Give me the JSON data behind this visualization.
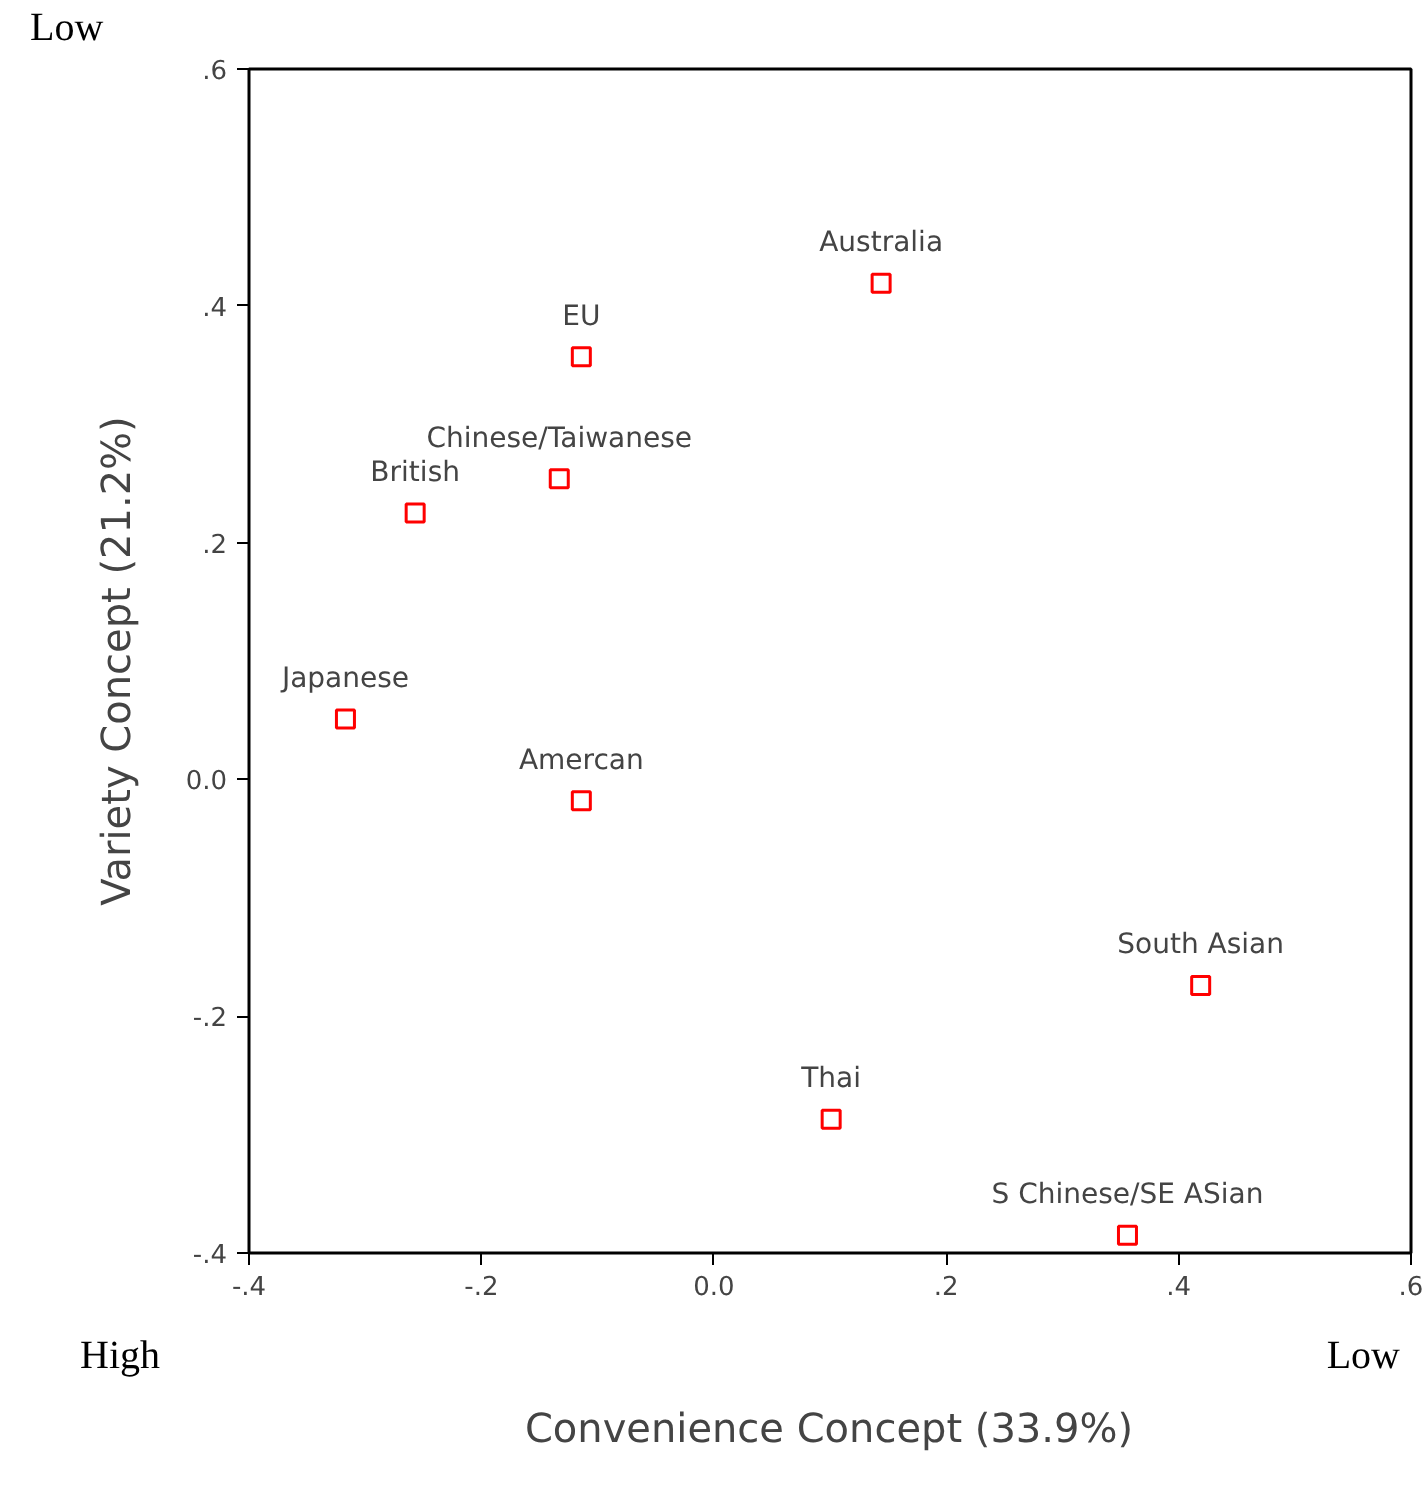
{
  "chart_data": {
    "type": "scatter",
    "xlabel": "Convenience Concept (33.9%)",
    "ylabel": "Variety Concept (21.2%)",
    "xlim": [
      -0.4,
      0.6
    ],
    "ylim": [
      -0.4,
      0.6
    ],
    "xticks": [
      {
        "value": -0.4,
        "label": "-.4"
      },
      {
        "value": -0.2,
        "label": "-.2"
      },
      {
        "value": 0,
        "label": "0.0"
      },
      {
        "value": 0.2,
        "label": ".2"
      },
      {
        "value": 0.4,
        "label": ".4"
      },
      {
        "value": 0.6,
        "label": ".6"
      }
    ],
    "yticks": [
      {
        "value": -0.4,
        "label": "-.4"
      },
      {
        "value": -0.2,
        "label": "-.2"
      },
      {
        "value": 0,
        "label": "0.0"
      },
      {
        "value": 0.2,
        "label": ".2"
      },
      {
        "value": 0.4,
        "label": ".4"
      },
      {
        "value": 0.6,
        "label": ".6"
      }
    ],
    "marker": "square",
    "grid": false,
    "annotations": [
      "Low",
      "High",
      "Low"
    ],
    "series": [
      {
        "name": "Australia",
        "color": "#ff0000",
        "x": [
          0.144
        ],
        "values": [
          0.419
        ]
      },
      {
        "name": "EU",
        "color": "#ff0000",
        "x": [
          -0.114
        ],
        "values": [
          0.357
        ]
      },
      {
        "name": "Chinese/Taiwanese",
        "color": "#ff0000",
        "x": [
          -0.133
        ],
        "values": [
          0.254
        ]
      },
      {
        "name": "British",
        "color": "#ff0000",
        "x": [
          -0.257
        ],
        "values": [
          0.225
        ]
      },
      {
        "name": "Japanese",
        "color": "#ff0000",
        "x": [
          -0.317
        ],
        "values": [
          0.051
        ]
      },
      {
        "name": "Amercan",
        "color": "#ff0000",
        "x": [
          -0.114
        ],
        "values": [
          -0.018
        ]
      },
      {
        "name": "South Asian",
        "color": "#ff0000",
        "x": [
          0.419
        ],
        "values": [
          -0.174
        ]
      },
      {
        "name": "Thai",
        "color": "#ff0000",
        "x": [
          0.101
        ],
        "values": [
          -0.287
        ]
      },
      {
        "name": "S Chinese/SE ASian",
        "color": "#ff0000",
        "x": [
          0.356
        ],
        "values": [
          -0.385
        ]
      }
    ]
  }
}
